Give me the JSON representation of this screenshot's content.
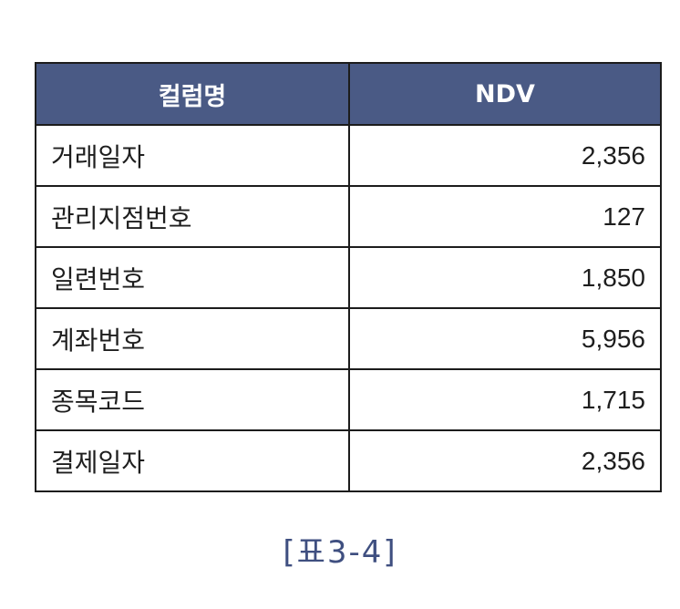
{
  "table": {
    "headers": [
      "컬럼명",
      "NDV"
    ],
    "rows": [
      {
        "name": "거래일자",
        "ndv": "2,356"
      },
      {
        "name": "관리지점번호",
        "ndv": "127"
      },
      {
        "name": "일련번호",
        "ndv": "1,850"
      },
      {
        "name": "계좌번호",
        "ndv": "5,956"
      },
      {
        "name": "종목코드",
        "ndv": "1,715"
      },
      {
        "name": "결제일자",
        "ndv": "2,356"
      }
    ]
  },
  "caption": "[표3-4]",
  "colors": {
    "header_bg": "#4a5a85",
    "header_text": "#ffffff",
    "caption_text": "#3f4f80",
    "border": "#1c1c1c"
  }
}
